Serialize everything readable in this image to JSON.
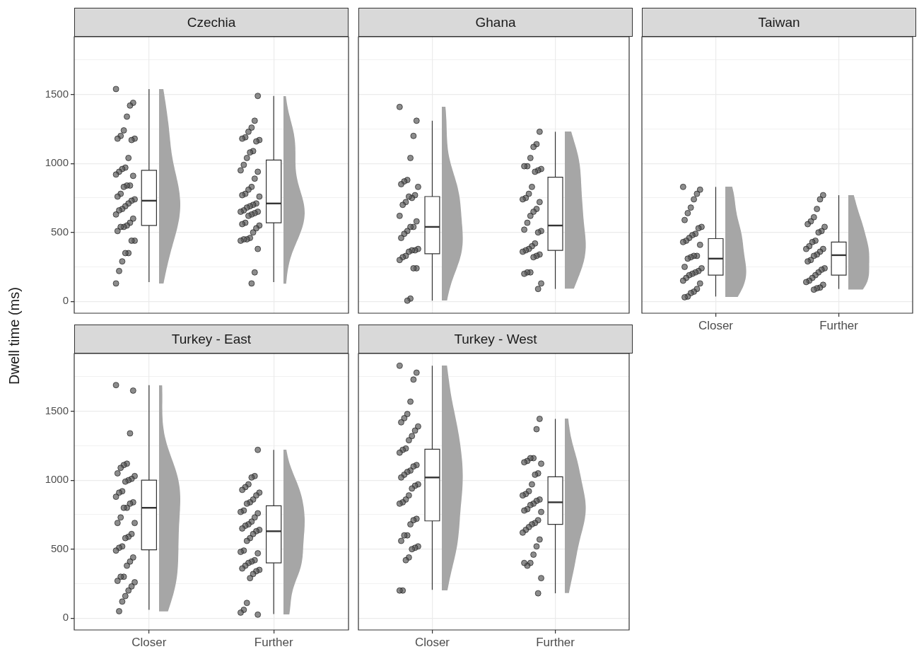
{
  "chart_data": [
    {
      "type": "box",
      "title": "Czechia",
      "ylabel": "Dwell time (ms)",
      "categories": [
        "Closer",
        "Further"
      ],
      "ylim": [
        -86,
        1919
      ],
      "yticks": [
        0,
        {
          "value": 250,
          "label": null
        },
        500,
        {
          "value": 750,
          "label": null
        },
        1000,
        {
          "value": 1250,
          "label": null
        },
        1500,
        {
          "value": 1750,
          "label": null
        }
      ],
      "grid": true,
      "tick_labels": "y",
      "marker": "circle",
      "boxes": [
        {
          "low": 140,
          "q1": 550,
          "median": 730,
          "q3": 950,
          "high": 1540
        },
        {
          "low": 140,
          "q1": 570,
          "median": 710,
          "q3": 1025,
          "high": 1490
        }
      ],
      "series": [
        {
          "type": "scatter",
          "color": "#595959",
          "x": [
            "Closer",
            "Closer",
            "Closer",
            "Closer",
            "Closer",
            "Closer",
            "Closer",
            "Closer",
            "Closer",
            "Closer",
            "Closer",
            "Closer",
            "Closer",
            "Closer",
            "Closer",
            "Closer",
            "Closer",
            "Closer",
            "Closer",
            "Closer",
            "Closer",
            "Closer",
            "Closer",
            "Closer",
            "Closer",
            "Closer",
            "Closer",
            "Closer",
            "Closer",
            "Closer",
            "Closer",
            "Closer",
            "Closer",
            "Closer",
            "Closer",
            "Closer",
            "Closer",
            "Closer",
            "Closer",
            "Closer"
          ],
          "values": [
            1540,
            1440,
            1420,
            1340,
            1240,
            1200,
            1180,
            1180,
            1170,
            1040,
            970,
            960,
            940,
            920,
            910,
            840,
            840,
            830,
            780,
            760,
            740,
            730,
            710,
            690,
            670,
            660,
            630,
            600,
            570,
            550,
            540,
            540,
            510,
            440,
            440,
            350,
            350,
            290,
            220,
            130
          ]
        },
        {
          "type": "scatter",
          "color": "#595959",
          "x": [
            "Further",
            "Further",
            "Further",
            "Further",
            "Further",
            "Further",
            "Further",
            "Further",
            "Further",
            "Further",
            "Further",
            "Further",
            "Further",
            "Further",
            "Further",
            "Further",
            "Further",
            "Further",
            "Further",
            "Further",
            "Further",
            "Further",
            "Further",
            "Further",
            "Further",
            "Further",
            "Further",
            "Further",
            "Further",
            "Further",
            "Further",
            "Further",
            "Further",
            "Further",
            "Further",
            "Further",
            "Further",
            "Further",
            "Further",
            "Further",
            "Further",
            "Further"
          ],
          "values": [
            1490,
            1310,
            1260,
            1230,
            1190,
            1180,
            1170,
            1160,
            1090,
            1080,
            1040,
            990,
            950,
            940,
            890,
            830,
            810,
            780,
            770,
            760,
            710,
            700,
            690,
            680,
            660,
            650,
            650,
            640,
            630,
            620,
            570,
            560,
            550,
            530,
            500,
            460,
            450,
            450,
            440,
            380,
            210,
            130
          ]
        }
      ]
    },
    {
      "type": "box",
      "title": "Ghana",
      "categories": [
        "Closer",
        "Further"
      ],
      "ylim": [
        -86,
        1919
      ],
      "yticks": [
        0,
        {
          "value": 250,
          "label": null
        },
        500,
        {
          "value": 750,
          "label": null
        },
        1000,
        {
          "value": 1250,
          "label": null
        },
        1500,
        {
          "value": 1750,
          "label": null
        }
      ],
      "grid": true,
      "tick_labels": false,
      "marker": "circle",
      "boxes": [
        {
          "low": 5,
          "q1": 345,
          "median": 540,
          "q3": 760,
          "high": 1310
        },
        {
          "low": 90,
          "q1": 370,
          "median": 550,
          "q3": 900,
          "high": 1230
        }
      ],
      "series": [
        {
          "type": "scatter",
          "color": "#595959",
          "x": [
            "Closer",
            "Closer",
            "Closer",
            "Closer",
            "Closer",
            "Closer",
            "Closer",
            "Closer",
            "Closer",
            "Closer",
            "Closer",
            "Closer",
            "Closer",
            "Closer",
            "Closer",
            "Closer",
            "Closer",
            "Closer",
            "Closer",
            "Closer",
            "Closer",
            "Closer",
            "Closer",
            "Closer",
            "Closer",
            "Closer",
            "Closer",
            "Closer",
            "Closer",
            "Closer",
            "Closer"
          ],
          "values": [
            1410,
            1310,
            1200,
            1040,
            880,
            870,
            850,
            830,
            770,
            750,
            760,
            720,
            700,
            620,
            580,
            540,
            540,
            510,
            490,
            460,
            380,
            370,
            370,
            360,
            330,
            320,
            300,
            240,
            240,
            20,
            5
          ]
        },
        {
          "type": "scatter",
          "color": "#595959",
          "x": [
            "Further",
            "Further",
            "Further",
            "Further",
            "Further",
            "Further",
            "Further",
            "Further",
            "Further",
            "Further",
            "Further",
            "Further",
            "Further",
            "Further",
            "Further",
            "Further",
            "Further",
            "Further",
            "Further",
            "Further",
            "Further",
            "Further",
            "Further",
            "Further",
            "Further",
            "Further",
            "Further",
            "Further",
            "Further",
            "Further",
            "Further",
            "Further",
            "Further",
            "Further"
          ],
          "values": [
            1230,
            1140,
            1120,
            1040,
            980,
            980,
            960,
            950,
            940,
            830,
            780,
            750,
            740,
            720,
            670,
            650,
            620,
            570,
            520,
            510,
            500,
            420,
            400,
            380,
            370,
            360,
            340,
            330,
            320,
            210,
            210,
            200,
            130,
            90
          ]
        }
      ]
    },
    {
      "type": "box",
      "title": "Taiwan",
      "categories": [
        "Closer",
        "Further"
      ],
      "ylim": [
        -86,
        1919
      ],
      "yticks": [
        0,
        {
          "value": 250,
          "label": null
        },
        500,
        {
          "value": 750,
          "label": null
        },
        1000,
        {
          "value": 1250,
          "label": null
        },
        1500,
        {
          "value": 1750,
          "label": null
        }
      ],
      "grid": true,
      "tick_labels": "x",
      "marker": "circle",
      "boxes": [
        {
          "low": 35,
          "q1": 190,
          "median": 310,
          "q3": 455,
          "high": 830
        },
        {
          "low": 90,
          "q1": 190,
          "median": 335,
          "q3": 430,
          "high": 770
        }
      ],
      "series": [
        {
          "type": "scatter",
          "color": "#595959",
          "x": [
            "Closer",
            "Closer",
            "Closer",
            "Closer",
            "Closer",
            "Closer",
            "Closer",
            "Closer",
            "Closer",
            "Closer",
            "Closer",
            "Closer",
            "Closer",
            "Closer",
            "Closer",
            "Closer",
            "Closer",
            "Closer",
            "Closer",
            "Closer",
            "Closer",
            "Closer",
            "Closer",
            "Closer",
            "Closer",
            "Closer",
            "Closer",
            "Closer",
            "Closer",
            "Closer",
            "Closer",
            "Closer",
            "Closer"
          ],
          "values": [
            830,
            810,
            780,
            740,
            680,
            640,
            590,
            540,
            530,
            490,
            480,
            460,
            440,
            430,
            410,
            330,
            330,
            320,
            310,
            250,
            240,
            220,
            210,
            200,
            190,
            170,
            150,
            130,
            90,
            70,
            60,
            35,
            30
          ]
        },
        {
          "type": "scatter",
          "color": "#595959",
          "x": [
            "Further",
            "Further",
            "Further",
            "Further",
            "Further",
            "Further",
            "Further",
            "Further",
            "Further",
            "Further",
            "Further",
            "Further",
            "Further",
            "Further",
            "Further",
            "Further",
            "Further",
            "Further",
            "Further",
            "Further",
            "Further",
            "Further",
            "Further",
            "Further",
            "Further",
            "Further",
            "Further",
            "Further",
            "Further",
            "Further"
          ],
          "values": [
            770,
            740,
            670,
            610,
            580,
            560,
            540,
            510,
            500,
            440,
            430,
            400,
            380,
            380,
            360,
            340,
            330,
            300,
            290,
            240,
            230,
            210,
            190,
            170,
            150,
            140,
            120,
            100,
            95,
            85
          ]
        }
      ]
    },
    {
      "type": "box",
      "title": "Turkey - East",
      "categories": [
        "Closer",
        "Further"
      ],
      "ylim": [
        -86,
        1919
      ],
      "yticks": [
        0,
        {
          "value": 250,
          "label": null
        },
        500,
        {
          "value": 750,
          "label": null
        },
        1000,
        {
          "value": 1250,
          "label": null
        },
        1500,
        {
          "value": 1750,
          "label": null
        }
      ],
      "grid": true,
      "marker": "circle",
      "boxes": [
        {
          "low": 60,
          "q1": 495,
          "median": 800,
          "q3": 1000,
          "high": 1690
        },
        {
          "low": 30,
          "q1": 400,
          "median": 630,
          "q3": 815,
          "high": 1220
        }
      ],
      "series": [
        {
          "type": "scatter",
          "color": "#595959",
          "x": [
            "Closer",
            "Closer",
            "Closer",
            "Closer",
            "Closer",
            "Closer",
            "Closer",
            "Closer",
            "Closer",
            "Closer",
            "Closer",
            "Closer",
            "Closer",
            "Closer",
            "Closer",
            "Closer",
            "Closer",
            "Closer",
            "Closer",
            "Closer",
            "Closer",
            "Closer",
            "Closer",
            "Closer",
            "Closer",
            "Closer",
            "Closer",
            "Closer",
            "Closer",
            "Closer",
            "Closer",
            "Closer",
            "Closer",
            "Closer",
            "Closer",
            "Closer",
            "Closer",
            "Closer",
            "Closer"
          ],
          "values": [
            1690,
            1650,
            1340,
            1120,
            1110,
            1090,
            1050,
            1030,
            1010,
            1000,
            990,
            920,
            910,
            880,
            840,
            830,
            800,
            800,
            730,
            690,
            690,
            610,
            590,
            580,
            520,
            510,
            490,
            440,
            410,
            380,
            300,
            300,
            270,
            260,
            230,
            200,
            160,
            120,
            50
          ]
        },
        {
          "type": "scatter",
          "color": "#595959",
          "x": [
            "Further",
            "Further",
            "Further",
            "Further",
            "Further",
            "Further",
            "Further",
            "Further",
            "Further",
            "Further",
            "Further",
            "Further",
            "Further",
            "Further",
            "Further",
            "Further",
            "Further",
            "Further",
            "Further",
            "Further",
            "Further",
            "Further",
            "Further",
            "Further",
            "Further",
            "Further",
            "Further",
            "Further",
            "Further",
            "Further",
            "Further",
            "Further",
            "Further",
            "Further",
            "Further",
            "Further",
            "Further",
            "Further",
            "Further",
            "Further"
          ],
          "values": [
            1220,
            1030,
            1020,
            970,
            950,
            930,
            910,
            890,
            860,
            840,
            830,
            780,
            770,
            760,
            730,
            700,
            680,
            670,
            650,
            640,
            630,
            610,
            580,
            560,
            490,
            480,
            470,
            420,
            410,
            400,
            380,
            360,
            350,
            340,
            320,
            290,
            110,
            60,
            40,
            25
          ]
        }
      ]
    },
    {
      "type": "box",
      "title": "Turkey - West",
      "categories": [
        "Closer",
        "Further"
      ],
      "ylim": [
        -86,
        1919
      ],
      "yticks": [
        0,
        {
          "value": 250,
          "label": null
        },
        500,
        {
          "value": 750,
          "label": null
        },
        1000,
        {
          "value": 1250,
          "label": null
        },
        1500,
        {
          "value": 1750,
          "label": null
        }
      ],
      "grid": true,
      "tick_labels": "x",
      "marker": "circle",
      "boxes": [
        {
          "low": 205,
          "q1": 705,
          "median": 1020,
          "q3": 1225,
          "high": 1830
        },
        {
          "low": 180,
          "q1": 680,
          "median": 840,
          "q3": 1025,
          "high": 1445
        }
      ],
      "series": [
        {
          "type": "scatter",
          "color": "#595959",
          "x": [
            "Closer",
            "Closer",
            "Closer",
            "Closer",
            "Closer",
            "Closer",
            "Closer",
            "Closer",
            "Closer",
            "Closer",
            "Closer",
            "Closer",
            "Closer",
            "Closer",
            "Closer",
            "Closer",
            "Closer",
            "Closer",
            "Closer",
            "Closer",
            "Closer",
            "Closer",
            "Closer",
            "Closer",
            "Closer",
            "Closer",
            "Closer",
            "Closer",
            "Closer",
            "Closer",
            "Closer",
            "Closer",
            "Closer",
            "Closer",
            "Closer",
            "Closer",
            "Closer",
            "Closer",
            "Closer",
            "Closer"
          ],
          "values": [
            1830,
            1780,
            1730,
            1570,
            1480,
            1450,
            1420,
            1390,
            1360,
            1320,
            1290,
            1230,
            1220,
            1200,
            1110,
            1100,
            1070,
            1060,
            1040,
            1020,
            970,
            960,
            940,
            890,
            860,
            840,
            830,
            720,
            710,
            680,
            600,
            600,
            560,
            520,
            510,
            500,
            440,
            420,
            200,
            200
          ]
        },
        {
          "type": "scatter",
          "color": "#595959",
          "x": [
            "Further",
            "Further",
            "Further",
            "Further",
            "Further",
            "Further",
            "Further",
            "Further",
            "Further",
            "Further",
            "Further",
            "Further",
            "Further",
            "Further",
            "Further",
            "Further",
            "Further",
            "Further",
            "Further",
            "Further",
            "Further",
            "Further",
            "Further",
            "Further",
            "Further",
            "Further",
            "Further",
            "Further",
            "Further",
            "Further",
            "Further",
            "Further",
            "Further",
            "Further"
          ],
          "values": [
            1445,
            1370,
            1160,
            1160,
            1140,
            1130,
            1120,
            1050,
            1040,
            970,
            920,
            900,
            890,
            860,
            850,
            830,
            820,
            790,
            780,
            770,
            710,
            690,
            680,
            660,
            640,
            620,
            570,
            520,
            460,
            400,
            380,
            400,
            290,
            180
          ]
        }
      ]
    }
  ]
}
